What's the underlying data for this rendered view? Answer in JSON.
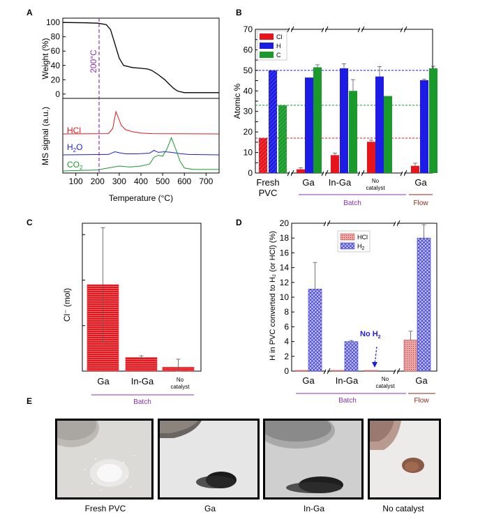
{
  "panel_labels": {
    "a": "A",
    "b": "B",
    "c": "C",
    "d": "D",
    "e": "E"
  },
  "colors": {
    "cl_red": "#e8141c",
    "h_blue": "#1c1ce6",
    "c_green": "#1a9a2a",
    "purple": "#8b2fb8",
    "brown": "#8b2a1a",
    "hcl_pink": "#e8a0a0",
    "h2_lavender": "#a8a8e8"
  },
  "chart_data": [
    {
      "type": "line",
      "panel": "A",
      "xlabel": "Temperature (°C)",
      "x_ticks": [
        "100",
        "200",
        "300",
        "400",
        "500",
        "600",
        "700"
      ],
      "xlim": [
        40,
        760
      ],
      "marker_label": "200°C",
      "marker_x": 200,
      "top": {
        "ylabel": "Weight (%)",
        "y_ticks": [
          "0",
          "20",
          "40",
          "60",
          "80",
          "100"
        ],
        "ylim": [
          -6,
          106
        ],
        "series": [
          {
            "name": "",
            "x": [
              40,
              150,
              200,
              240,
              260,
              280,
              300,
              320,
              360,
              400,
              430,
              450,
              480,
              510,
              530,
              550,
              570,
              600,
              650,
              760
            ],
            "y": [
              100,
              99.5,
              99,
              97,
              90,
              70,
              50,
              40,
              37,
              36,
              35,
              33,
              27,
              20,
              14,
              8,
              4,
              2,
              2,
              2
            ]
          }
        ]
      },
      "bottom": {
        "ylabel": "MS signal (a.u.)",
        "series": [
          {
            "name": "HCl",
            "x": [
              40,
              250,
              270,
              285,
              295,
              310,
              330,
              360,
              400,
              450,
              760
            ],
            "y": [
              0,
              0.1,
              2,
              8,
              6,
              3,
              1.5,
              0.8,
              0.3,
              0.1,
              0
            ]
          },
          {
            "name": "H2O",
            "x": [
              40,
              250,
              280,
              300,
              330,
              380,
              440,
              460,
              480,
              510,
              540,
              580,
              620,
              760
            ],
            "y": [
              0,
              0.2,
              1.5,
              1,
              0.5,
              0.5,
              0.8,
              2.2,
              1.2,
              1.5,
              1.2,
              0.6,
              0.2,
              0
            ]
          },
          {
            "name": "CO2",
            "x": [
              40,
              200,
              250,
              300,
              350,
              400,
              440,
              460,
              480,
              500,
              520,
              540,
              560,
              580,
              600,
              640,
              760
            ],
            "y": [
              0,
              0.2,
              0.6,
              1,
              0.8,
              1,
              1.4,
              2.8,
              3.2,
              3,
              4.5,
              6.8,
              4.5,
              2,
              0.6,
              0.3,
              0.3
            ]
          }
        ],
        "series_labels": [
          {
            "text": "HCl"
          },
          {
            "text": "H",
            "sub": "2",
            "after": "O"
          },
          {
            "text": "CO",
            "sub": "2",
            "after": ""
          }
        ]
      }
    },
    {
      "type": "bar",
      "panel": "B",
      "ylabel": "Atomic %",
      "ylim": [
        0,
        70
      ],
      "y_ticks": [
        "0",
        "5",
        "10",
        "15",
        "20",
        "25",
        "30",
        "35",
        "40",
        "45",
        "50",
        "55",
        "60",
        "65",
        "70"
      ],
      "legend": [
        "Cl",
        "H",
        "C"
      ],
      "categories": [
        {
          "label": [
            "Fresh",
            "PVC"
          ],
          "small": false
        },
        {
          "label": [
            "Ga"
          ],
          "small": false
        },
        {
          "label": [
            "In-Ga"
          ],
          "small": false
        },
        {
          "label": [
            "No",
            "catalyst"
          ],
          "small": true
        },
        {
          "label": [
            "Ga"
          ],
          "small": false
        }
      ],
      "series": [
        {
          "name": "Cl",
          "values": [
            17,
            1.8,
            8.7,
            15.2,
            3.5
          ],
          "errors": [
            0,
            0.8,
            1.0,
            0.8,
            1.3
          ]
        },
        {
          "name": "H",
          "values": [
            50,
            46.5,
            51,
            47,
            45.2
          ],
          "errors": [
            0,
            0,
            2.2,
            4.8,
            0.5
          ]
        },
        {
          "name": "C",
          "values": [
            33,
            51.5,
            40,
            37.5,
            51
          ],
          "errors": [
            0,
            1.2,
            5.5,
            0,
            1
          ]
        }
      ],
      "ref_lines": [
        50,
        33,
        17
      ],
      "group_labels": [
        "Batch",
        "Flow"
      ]
    },
    {
      "type": "bar",
      "panel": "C",
      "ylabel": "Cl⁻ (mol)",
      "categories": [
        {
          "label": [
            "Ga"
          ],
          "small": false
        },
        {
          "label": [
            "In-Ga"
          ],
          "small": false
        },
        {
          "label": [
            "No",
            "catalyst"
          ],
          "small": true
        }
      ],
      "values": [
        7.6,
        1.2,
        0.35
      ],
      "errors": [
        5,
        0.15,
        0.7
      ],
      "ylim": [
        0,
        13
      ],
      "group_labels": [
        "Batch"
      ]
    },
    {
      "type": "bar",
      "panel": "D",
      "ylabel": "H in PVC converted to H₂ (or HCl) (%)",
      "ylim": [
        0,
        20
      ],
      "y_ticks": [
        "0",
        "2",
        "4",
        "6",
        "8",
        "10",
        "12",
        "14",
        "16",
        "18",
        "20"
      ],
      "legend": [
        "HCl",
        "H2"
      ],
      "categories": [
        {
          "label": [
            "Ga"
          ],
          "small": false
        },
        {
          "label": [
            "In-Ga"
          ],
          "small": false
        },
        {
          "label": [
            "No",
            "catalyst"
          ],
          "small": true
        },
        {
          "label": [
            "Ga"
          ],
          "small": false
        }
      ],
      "series": [
        {
          "name": "HCl",
          "values": [
            0.05,
            0.05,
            0.05,
            4.2
          ],
          "errors": [
            0,
            0,
            0,
            1.2
          ]
        },
        {
          "name": "H2",
          "values": [
            11.1,
            4.0,
            0,
            18.0
          ],
          "errors": [
            3.6,
            0.15,
            0,
            1.8
          ]
        }
      ],
      "annotation": {
        "text": "No H",
        "sub": "2"
      },
      "group_labels": [
        "Batch",
        "Flow"
      ]
    }
  ],
  "photos": [
    {
      "caption": "Fresh PVC"
    },
    {
      "caption": "Ga"
    },
    {
      "caption": "In-Ga"
    },
    {
      "caption": "No catalyst"
    }
  ]
}
